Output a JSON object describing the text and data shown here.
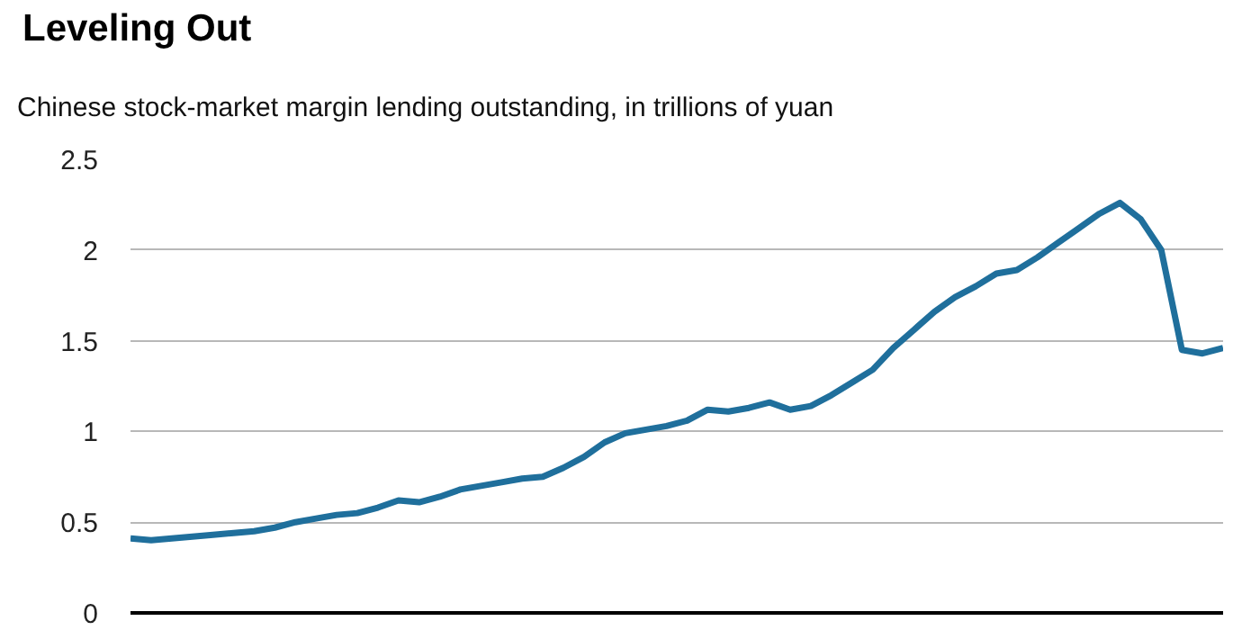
{
  "chart_data": {
    "type": "line",
    "title": "Leveling Out",
    "subtitle": "Chinese stock-market margin lending outstanding, in trillions of yuan",
    "categories": [
      null,
      null,
      null,
      null,
      null,
      null,
      null,
      null,
      null,
      null,
      null,
      null,
      null,
      null,
      null,
      null,
      null,
      null,
      null,
      null,
      null,
      null,
      null,
      null,
      null,
      null,
      null,
      null,
      null,
      null,
      null,
      null,
      null,
      null,
      null,
      null,
      null,
      null,
      null,
      null,
      null,
      null,
      null,
      null,
      null,
      null,
      null,
      null,
      null,
      null,
      null,
      null,
      null,
      null
    ],
    "ylim": [
      0,
      2.5
    ],
    "yticks": [
      0,
      {
        "value": 0.5,
        "label": "0.5"
      },
      1,
      {
        "value": 1.5,
        "label": "1.5"
      },
      2,
      {
        "value": 2.5,
        "label": "2.5"
      }
    ],
    "grid": "y",
    "tick_labels": "y",
    "marker": "none",
    "line_style": "solid",
    "series": [
      {
        "color": "#1f6f9c",
        "values": [
          0.41,
          0.4,
          0.41,
          0.42,
          0.43,
          0.44,
          0.45,
          0.47,
          0.5,
          0.52,
          0.54,
          0.55,
          0.58,
          0.62,
          0.61,
          0.64,
          0.68,
          0.7,
          0.72,
          0.74,
          0.75,
          0.8,
          0.86,
          0.94,
          0.99,
          1.01,
          1.03,
          1.06,
          1.12,
          1.11,
          1.13,
          1.16,
          1.12,
          1.14,
          1.2,
          1.27,
          1.34,
          1.46,
          1.56,
          1.66,
          1.74,
          1.8,
          1.87,
          1.89,
          1.96,
          2.04,
          2.12,
          2.2,
          2.26,
          2.17,
          2.0,
          1.45,
          1.43,
          1.46
        ]
      }
    ]
  }
}
